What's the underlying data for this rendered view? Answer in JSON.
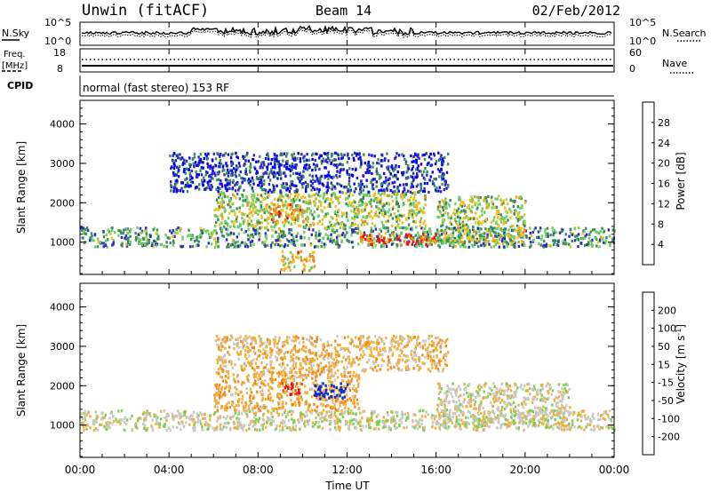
{
  "header": {
    "station": "Unwin (fitACF)",
    "beam": "Beam 14",
    "date": "02/Feb/2012"
  },
  "noise_panel": {
    "left_label": "N.Sky",
    "left_ticks": [
      "10^5",
      "10^0"
    ],
    "right_label": "N.Search",
    "right_ticks": [
      "10^5",
      "10^0"
    ]
  },
  "freq_panel": {
    "left_label_line1": "Freq.",
    "left_label_line2": "[MHz]",
    "left_ticks": [
      "18",
      "8"
    ],
    "right_label": "Nave",
    "right_ticks": [
      "60",
      "0"
    ]
  },
  "cpid": {
    "label": "CPID",
    "text": "normal (fast stereo) 153 RF"
  },
  "power_panel": {
    "ylabel": "Slant Range [km]",
    "yticks": [
      "4000",
      "3000",
      "2000",
      "1000"
    ],
    "colorbar_label": "Power [dB]",
    "colorbar_ticks": [
      "28",
      "24",
      "20",
      "16",
      "12",
      "8",
      "4"
    ],
    "colors": [
      "#0000ee",
      "#2a2ac0",
      "#3c8c5a",
      "#6fcf5f",
      "#f0c020",
      "#f08a20",
      "#ee1010"
    ]
  },
  "velocity_panel": {
    "ylabel": "Slant Range [km]",
    "yticks": [
      "4000",
      "3000",
      "2000",
      "1000"
    ],
    "colorbar_label": "Velocity [m s",
    "colorbar_label_sup": "-1",
    "colorbar_label_end": "]",
    "colorbar_ticks": [
      "200",
      "100",
      "50",
      "15",
      "-15",
      "-50",
      "-100",
      "-200"
    ],
    "colors": [
      "#ee1010",
      "#f04a10",
      "#f08a20",
      "#f0b040",
      "#c8c8c0",
      "#7ad050",
      "#2e8a40",
      "#1030c0"
    ]
  },
  "x_axis": {
    "ticks": [
      "00:00",
      "04:00",
      "08:00",
      "12:00",
      "16:00",
      "20:00",
      "00:00"
    ],
    "label": "Time UT"
  },
  "chart_data": [
    {
      "type": "heatmap",
      "name": "power",
      "title": "",
      "xlabel": "Time UT",
      "ylabel": "Slant Range [km]",
      "x_range_hours": [
        0,
        24
      ],
      "ylim": [
        180,
        4600
      ],
      "colorbar_range_db": [
        0,
        30
      ],
      "bands": [
        {
          "t0": 0.0,
          "t1": 24.0,
          "r0": 900,
          "r1": 1400,
          "level": 12
        },
        {
          "t0": 6.0,
          "t1": 15.5,
          "r0": 1400,
          "r1": 2300,
          "level": 16
        },
        {
          "t0": 8.5,
          "t1": 10.0,
          "r0": 1500,
          "r1": 2000,
          "level": 22
        },
        {
          "t0": 12.5,
          "t1": 16.0,
          "r0": 950,
          "r1": 1250,
          "level": 26
        },
        {
          "t0": 9.0,
          "t1": 10.5,
          "r0": 300,
          "r1": 800,
          "level": 20
        },
        {
          "t0": 16.0,
          "t1": 20.0,
          "r0": 1000,
          "r1": 2200,
          "level": 16
        },
        {
          "t0": 4.0,
          "t1": 16.5,
          "r0": 2300,
          "r1": 3300,
          "level": 6
        }
      ]
    },
    {
      "type": "heatmap",
      "name": "velocity",
      "title": "",
      "xlabel": "Time UT",
      "ylabel": "Slant Range [km]",
      "x_range_hours": [
        0,
        24
      ],
      "ylim": [
        180,
        4600
      ],
      "colorbar_range_ms": [
        -250,
        250
      ],
      "bands": [
        {
          "t0": 0.0,
          "t1": 24.0,
          "r0": 900,
          "r1": 1400,
          "level": 0
        },
        {
          "t0": 6.0,
          "t1": 12.5,
          "r0": 1400,
          "r1": 2400,
          "level": -40
        },
        {
          "t0": 10.5,
          "t1": 12.0,
          "r0": 1700,
          "r1": 2100,
          "level": 200
        },
        {
          "t0": 9.0,
          "t1": 10.0,
          "r0": 1800,
          "r1": 2100,
          "level": -200
        },
        {
          "t0": 6.0,
          "t1": 16.5,
          "r0": 2400,
          "r1": 3300,
          "level": -30
        },
        {
          "t0": 16.0,
          "t1": 22.0,
          "r0": 1000,
          "r1": 2100,
          "level": 0
        }
      ]
    }
  ]
}
